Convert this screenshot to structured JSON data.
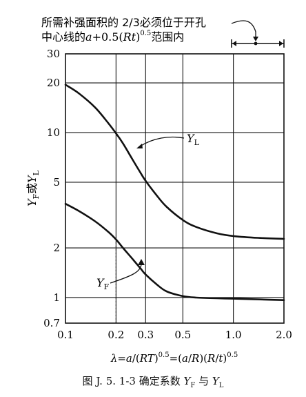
{
  "chart_data": {
    "type": "line",
    "title": "",
    "note": {
      "line1": "所需补强面积的 2/3必须位于开孔",
      "line2_prefix": "中心线的",
      "line2_expr": "a",
      "line2_mid": "+0.5(",
      "line2_rt": "Rt",
      "line2_close": ")",
      "line2_sup": "0.5",
      "line2_suffix": "范围内"
    },
    "xlabel": {
      "lambda": "λ",
      "eq1": "=",
      "a1": "a",
      "p1": "/(",
      "rt": "RT",
      "p2": ")",
      "sup1": "0.5",
      "eq2": "=(",
      "a2": "a",
      "p3": "/",
      "r1": "R",
      "p4": ")(",
      "r2": "R",
      "p5": "/",
      "t": "t",
      "p6": ")",
      "sup2": "0.5"
    },
    "ylabel": {
      "y1": "Y",
      "s1": "F",
      "or": "或",
      "y2": "Y",
      "s2": "L"
    },
    "x_scale": "log",
    "y_scale": "log",
    "xlim": [
      0.1,
      2.0
    ],
    "ylim": [
      0.7,
      30
    ],
    "x_ticks": [
      "0.1",
      "0.2",
      "0.3",
      "0.5",
      "1.0",
      "2.0"
    ],
    "y_ticks": [
      "0.7",
      "1",
      "2",
      "5",
      "10",
      "20",
      "30"
    ],
    "grid": true,
    "series": [
      {
        "name": "YL",
        "x": [
          0.1,
          0.12,
          0.15,
          0.18,
          0.2,
          0.22,
          0.25,
          0.28,
          0.3,
          0.35,
          0.4,
          0.5,
          0.6,
          0.8,
          1.0,
          1.4,
          2.0
        ],
        "y": [
          19.5,
          17.3,
          14.2,
          11.4,
          9.9,
          8.6,
          6.9,
          5.7,
          5.1,
          4.15,
          3.55,
          2.95,
          2.68,
          2.45,
          2.36,
          2.3,
          2.27
        ]
      },
      {
        "name": "YF",
        "x": [
          0.1,
          0.12,
          0.15,
          0.18,
          0.2,
          0.22,
          0.25,
          0.28,
          0.3,
          0.35,
          0.4,
          0.5,
          0.6,
          0.8,
          1.0,
          1.4,
          2.0
        ],
        "y": [
          3.7,
          3.35,
          2.9,
          2.5,
          2.25,
          2.0,
          1.72,
          1.5,
          1.38,
          1.2,
          1.09,
          1.02,
          1.0,
          0.99,
          0.985,
          0.975,
          0.965
        ]
      }
    ],
    "annotations": [
      {
        "label_main": "Y",
        "label_sub": "L",
        "series": "YL"
      },
      {
        "label_main": "Y",
        "label_sub": "F",
        "series": "YF"
      }
    ]
  },
  "caption": {
    "prefix": "图 J. 5. 1-3   确定系数 ",
    "y1": "Y",
    "s1": "F",
    "mid": " 与 ",
    "y2": "Y",
    "s2": "L"
  }
}
